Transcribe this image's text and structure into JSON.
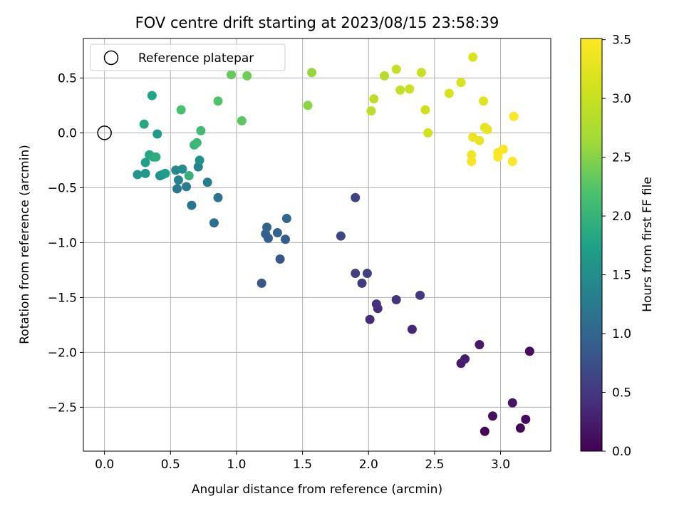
{
  "chart_data": {
    "type": "scatter",
    "title": "FOV centre drift starting at 2023/08/15 23:58:39",
    "xlabel": "Angular distance from reference (arcmin)",
    "ylabel": "Rotation from reference (arcmin)",
    "xlim": [
      -0.16,
      3.38
    ],
    "ylim": [
      -2.9,
      0.86
    ],
    "xticks": [
      0.0,
      0.5,
      1.0,
      1.5,
      2.0,
      2.5,
      3.0
    ],
    "xtick_labels": [
      "0.0",
      "0.5",
      "1.0",
      "1.5",
      "2.0",
      "2.5",
      "3.0"
    ],
    "yticks": [
      0.5,
      0.0,
      -0.5,
      -1.0,
      -1.5,
      -2.0,
      -2.5
    ],
    "ytick_labels": [
      "0.5",
      "0.0",
      "−0.5",
      "−1.0",
      "−1.5",
      "−2.0",
      "−2.5"
    ],
    "grid": true,
    "legend": {
      "position": "top-left",
      "entries": [
        "Reference platepar"
      ]
    },
    "reference_point": {
      "x": 0.0,
      "y": 0.0,
      "label": "Reference platepar"
    },
    "colorbar": {
      "label": "Hours from first FF file",
      "colormap": "viridis",
      "range": [
        0.0,
        3.51
      ],
      "ticks": [
        0.0,
        0.5,
        1.0,
        1.5,
        2.0,
        2.5,
        3.0,
        3.5
      ],
      "tick_labels": [
        "0.0",
        "0.5",
        "1.0",
        "1.5",
        "2.0",
        "2.5",
        "3.0",
        "3.5"
      ]
    },
    "points": [
      {
        "x": 2.88,
        "y": -2.72,
        "h": 0.03
      },
      {
        "x": 3.15,
        "y": -2.69,
        "h": 0.06
      },
      {
        "x": 3.19,
        "y": -2.61,
        "h": 0.09
      },
      {
        "x": 3.22,
        "y": -1.99,
        "h": 0.12
      },
      {
        "x": 2.94,
        "y": -2.58,
        "h": 0.15
      },
      {
        "x": 3.09,
        "y": -2.46,
        "h": 0.18
      },
      {
        "x": 2.84,
        "y": -1.93,
        "h": 0.21
      },
      {
        "x": 2.7,
        "y": -2.1,
        "h": 0.24
      },
      {
        "x": 2.73,
        "y": -2.06,
        "h": 0.27
      },
      {
        "x": 2.33,
        "y": -1.79,
        "h": 0.34
      },
      {
        "x": 2.01,
        "y": -1.7,
        "h": 0.38
      },
      {
        "x": 2.07,
        "y": -1.6,
        "h": 0.41
      },
      {
        "x": 2.06,
        "y": -1.56,
        "h": 0.44
      },
      {
        "x": 2.21,
        "y": -1.52,
        "h": 0.47
      },
      {
        "x": 2.39,
        "y": -1.48,
        "h": 0.5
      },
      {
        "x": 1.95,
        "y": -1.37,
        "h": 0.53
      },
      {
        "x": 1.9,
        "y": -1.28,
        "h": 0.56
      },
      {
        "x": 1.99,
        "y": -1.28,
        "h": 0.59
      },
      {
        "x": 1.9,
        "y": -0.59,
        "h": 0.62
      },
      {
        "x": 1.79,
        "y": -0.94,
        "h": 0.65
      },
      {
        "x": 1.19,
        "y": -1.37,
        "h": 0.8
      },
      {
        "x": 1.33,
        "y": -1.15,
        "h": 0.84
      },
      {
        "x": 1.37,
        "y": -0.97,
        "h": 0.87
      },
      {
        "x": 1.24,
        "y": -0.96,
        "h": 0.9
      },
      {
        "x": 1.22,
        "y": -0.92,
        "h": 0.93
      },
      {
        "x": 1.31,
        "y": -0.91,
        "h": 0.96
      },
      {
        "x": 1.23,
        "y": -0.86,
        "h": 0.99
      },
      {
        "x": 1.38,
        "y": -0.78,
        "h": 1.02
      },
      {
        "x": 0.83,
        "y": -0.82,
        "h": 1.1
      },
      {
        "x": 0.86,
        "y": -0.59,
        "h": 1.15
      },
      {
        "x": 0.66,
        "y": -0.66,
        "h": 1.2
      },
      {
        "x": 0.55,
        "y": -0.51,
        "h": 1.25
      },
      {
        "x": 0.62,
        "y": -0.49,
        "h": 1.28
      },
      {
        "x": 0.78,
        "y": -0.45,
        "h": 1.32
      },
      {
        "x": 0.56,
        "y": -0.43,
        "h": 1.36
      },
      {
        "x": 0.71,
        "y": -0.31,
        "h": 1.4
      },
      {
        "x": 0.54,
        "y": -0.34,
        "h": 1.44
      },
      {
        "x": 0.59,
        "y": -0.33,
        "h": 1.48
      },
      {
        "x": 0.72,
        "y": -0.25,
        "h": 1.52
      },
      {
        "x": 0.42,
        "y": -0.39,
        "h": 1.55
      },
      {
        "x": 0.44,
        "y": -0.38,
        "h": 1.58
      },
      {
        "x": 0.25,
        "y": -0.38,
        "h": 1.61
      },
      {
        "x": 0.31,
        "y": -0.37,
        "h": 1.64
      },
      {
        "x": 0.4,
        "y": -0.01,
        "h": 1.68
      },
      {
        "x": 0.46,
        "y": -0.37,
        "h": 1.71
      },
      {
        "x": 0.31,
        "y": -0.27,
        "h": 1.74
      },
      {
        "x": 0.36,
        "y": 0.34,
        "h": 1.78
      },
      {
        "x": 0.34,
        "y": -0.2,
        "h": 1.81
      },
      {
        "x": 0.3,
        "y": 0.08,
        "h": 1.84
      },
      {
        "x": 0.37,
        "y": -0.22,
        "h": 1.87
      },
      {
        "x": 0.39,
        "y": -0.22,
        "h": 1.9
      },
      {
        "x": 0.64,
        "y": -0.39,
        "h": 1.98
      },
      {
        "x": 0.68,
        "y": -0.11,
        "h": 2.02
      },
      {
        "x": 0.7,
        "y": -0.09,
        "h": 2.06
      },
      {
        "x": 0.73,
        "y": 0.02,
        "h": 2.1
      },
      {
        "x": 0.58,
        "y": 0.21,
        "h": 2.18
      },
      {
        "x": 0.86,
        "y": 0.29,
        "h": 2.22
      },
      {
        "x": 1.04,
        "y": 0.11,
        "h": 2.28
      },
      {
        "x": 0.96,
        "y": 0.53,
        "h": 2.33
      },
      {
        "x": 1.08,
        "y": 0.52,
        "h": 2.38
      },
      {
        "x": 1.54,
        "y": 0.25,
        "h": 2.52
      },
      {
        "x": 1.57,
        "y": 0.55,
        "h": 2.58
      },
      {
        "x": 2.12,
        "y": 0.52,
        "h": 2.83
      },
      {
        "x": 2.02,
        "y": 0.2,
        "h": 2.87
      },
      {
        "x": 2.04,
        "y": 0.31,
        "h": 2.9
      },
      {
        "x": 2.24,
        "y": 0.39,
        "h": 2.93
      },
      {
        "x": 2.21,
        "y": 0.58,
        "h": 2.97
      },
      {
        "x": 2.31,
        "y": 0.4,
        "h": 3.0
      },
      {
        "x": 2.4,
        "y": 0.55,
        "h": 3.03
      },
      {
        "x": 2.43,
        "y": 0.21,
        "h": 3.06
      },
      {
        "x": 2.45,
        "y": 0.0,
        "h": 3.09
      },
      {
        "x": 2.61,
        "y": 0.36,
        "h": 3.13
      },
      {
        "x": 2.7,
        "y": 0.46,
        "h": 3.16
      },
      {
        "x": 2.79,
        "y": 0.69,
        "h": 3.19
      },
      {
        "x": 2.87,
        "y": 0.29,
        "h": 3.23
      },
      {
        "x": 2.88,
        "y": 0.05,
        "h": 3.27
      },
      {
        "x": 2.9,
        "y": 0.03,
        "h": 3.3
      },
      {
        "x": 2.84,
        "y": -0.07,
        "h": 3.33
      },
      {
        "x": 2.79,
        "y": -0.04,
        "h": 3.36
      },
      {
        "x": 2.78,
        "y": -0.2,
        "h": 3.39
      },
      {
        "x": 2.78,
        "y": -0.26,
        "h": 3.42
      },
      {
        "x": 2.98,
        "y": -0.18,
        "h": 3.44
      },
      {
        "x": 3.02,
        "y": -0.15,
        "h": 3.46
      },
      {
        "x": 2.98,
        "y": -0.22,
        "h": 3.48
      },
      {
        "x": 3.09,
        "y": -0.26,
        "h": 3.49
      },
      {
        "x": 3.1,
        "y": 0.15,
        "h": 3.5
      }
    ]
  }
}
